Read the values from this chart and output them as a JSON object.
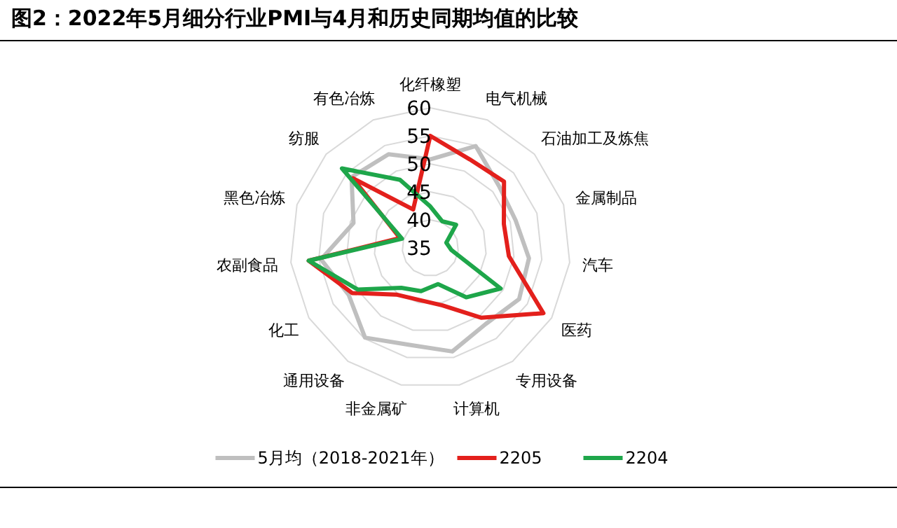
{
  "chart_data": {
    "type": "radar",
    "title": "图2：2022年5月细分行业PMI与4月和历史同期均值的比较",
    "categories": [
      "化纤橡塑",
      "电气机械",
      "石油加工及炼焦",
      "金属制品",
      "汽车",
      "医药",
      "专用设备",
      "计算机",
      "非金属矿",
      "通用设备",
      "化工",
      "农副食品",
      "黑色冶炼",
      "纺服",
      "有色冶炼"
    ],
    "ylim": [
      35,
      60
    ],
    "yticks": [
      35,
      40,
      45,
      50,
      55,
      60
    ],
    "grid": true,
    "legend": "bottom",
    "marker": "none",
    "line_style": "solid",
    "series": [
      {
        "name": "5月均（2018-2021年）",
        "color": "#bfbfbf",
        "values": [
          50.8,
          54.9,
          51.5,
          51,
          52.7,
          53.3,
          51.8,
          53.9,
          52.7,
          54.8,
          51.8,
          54.6,
          49.4,
          53.9,
          53.3
        ]
      },
      {
        "name": "2205",
        "color": "#e3201c",
        "values": [
          55,
          52.3,
          52.7,
          48.8,
          49.1,
          58.3,
          50.4,
          45.5,
          44.5,
          45.3,
          51.1,
          56.8,
          40.7,
          53.6,
          42.5
        ]
      },
      {
        "name": "2204",
        "color": "#1ea64a",
        "values": [
          42.4,
          40.2,
          41.2,
          38,
          38.8,
          49.5,
          45.9,
          41.6,
          42.9,
          43.8,
          49.9,
          56.8,
          40.3,
          56.2,
          48.3
        ]
      }
    ]
  }
}
